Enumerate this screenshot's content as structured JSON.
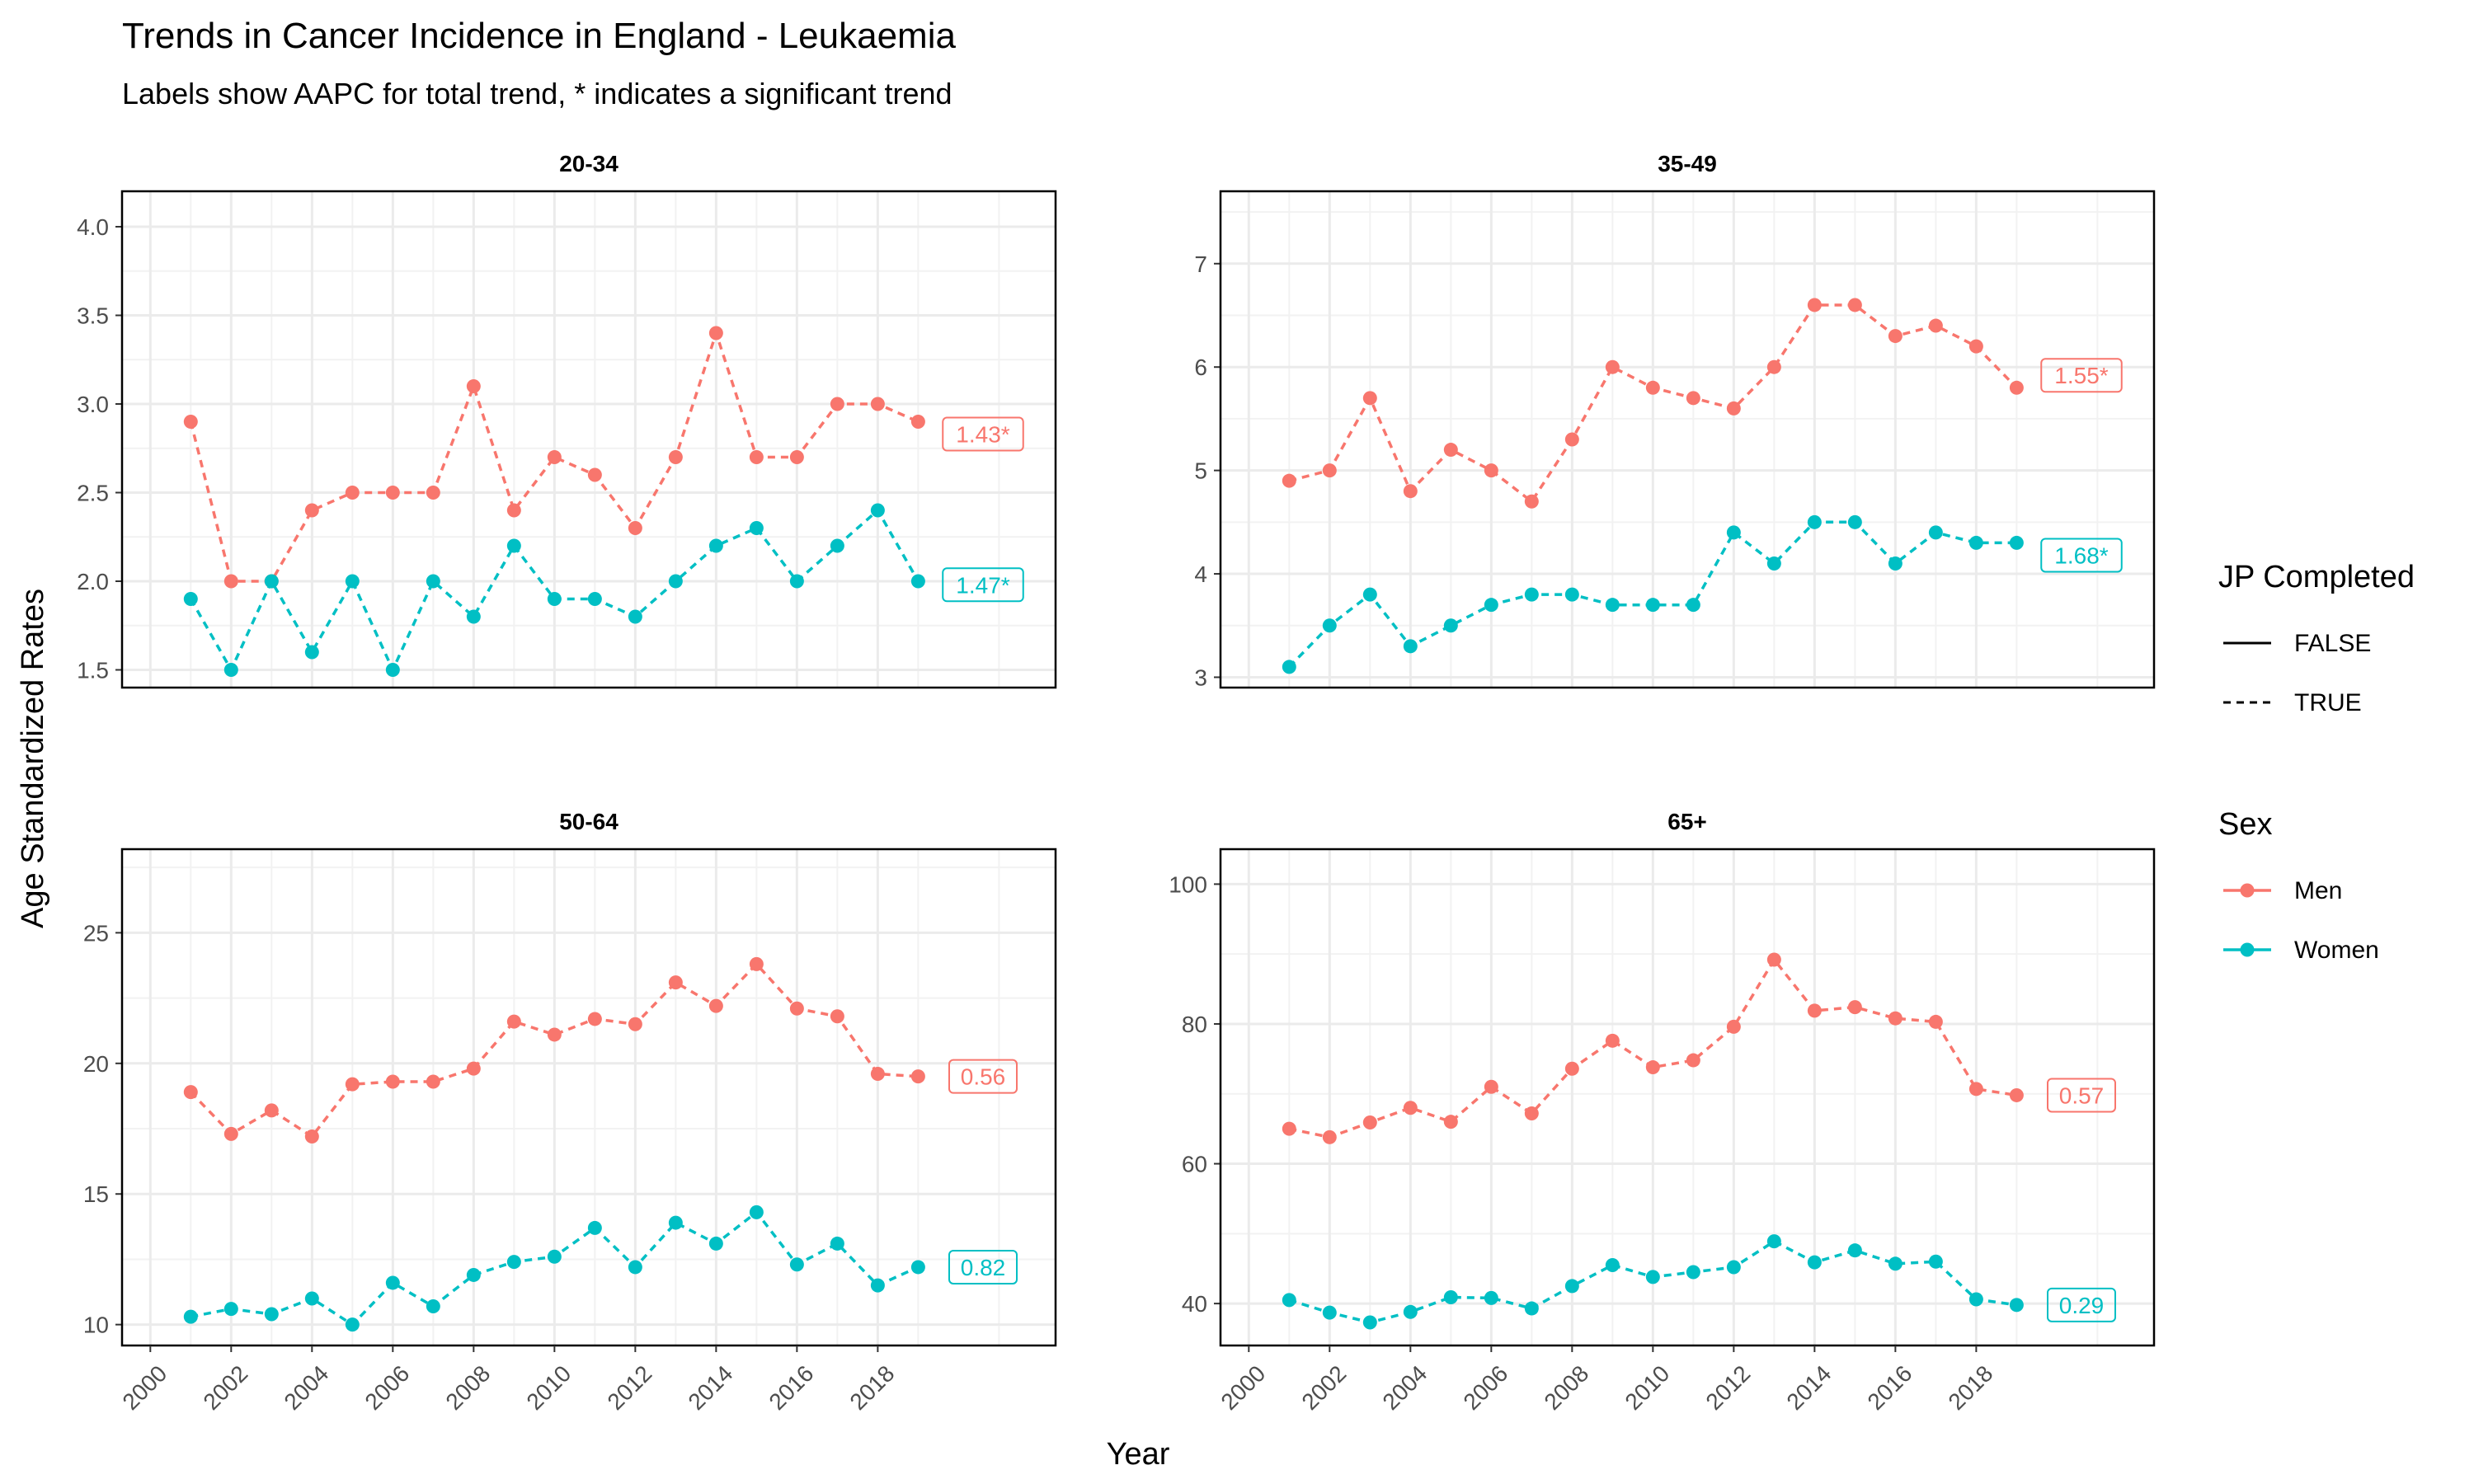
{
  "title": "Trends in Cancer Incidence in England - Leukaemia",
  "subtitle": "Labels show AAPC for total trend, * indicates a significant trend",
  "colors": {
    "men": "#F8766D",
    "women": "#00BFC4"
  },
  "chart_data": {
    "type": "line",
    "xlabel": "Year",
    "ylabel": "Age Standardized Rates",
    "x_ticks": [
      "2000",
      "2002",
      "2004",
      "2006",
      "2008",
      "2010",
      "2012",
      "2014",
      "2016",
      "2018"
    ],
    "xlim": [
      1999.3,
      2022.4
    ],
    "legend": {
      "position": "right",
      "linetype_title": "JP Completed",
      "linetype_items": [
        {
          "label": "FALSE",
          "style": "solid"
        },
        {
          "label": "TRUE",
          "style": "dashed"
        }
      ],
      "color_title": "Sex",
      "color_items": [
        {
          "label": "Men",
          "color": "#F8766D"
        },
        {
          "label": "Women",
          "color": "#00BFC4"
        }
      ]
    },
    "panels": [
      {
        "title": "20-34",
        "ylim": [
          1.4,
          4.2
        ],
        "y_ticks": [
          "1.5",
          "2.0",
          "2.5",
          "3.0",
          "3.5",
          "4.0"
        ],
        "series": [
          {
            "name": "Men",
            "x": [
              2001,
              2002,
              2003,
              2004,
              2005,
              2006,
              2007,
              2008,
              2009,
              2010,
              2011,
              2012,
              2013,
              2014,
              2015,
              2016,
              2017,
              2018,
              2019
            ],
            "values": [
              2.9,
              2.0,
              2.0,
              2.4,
              2.5,
              2.5,
              2.5,
              3.1,
              2.4,
              2.7,
              2.6,
              2.3,
              2.7,
              3.4,
              2.7,
              2.7,
              3.0,
              3.0,
              2.9
            ],
            "aapc": "1.43*",
            "aapc_y": 2.83
          },
          {
            "name": "Women",
            "x": [
              2001,
              2002,
              2003,
              2004,
              2005,
              2006,
              2007,
              2008,
              2009,
              2010,
              2011,
              2012,
              2013,
              2014,
              2015,
              2016,
              2017,
              2018,
              2019
            ],
            "values": [
              1.9,
              1.5,
              2.0,
              1.6,
              2.0,
              1.5,
              2.0,
              1.8,
              2.2,
              1.9,
              1.9,
              1.8,
              2.0,
              2.2,
              2.3,
              2.0,
              2.2,
              2.4,
              2.0
            ],
            "aapc": "1.47*",
            "aapc_y": 1.98
          }
        ]
      },
      {
        "title": "35-49",
        "ylim": [
          2.9,
          7.7
        ],
        "y_ticks": [
          "3",
          "4",
          "5",
          "6",
          "7"
        ],
        "series": [
          {
            "name": "Men",
            "x": [
              2001,
              2002,
              2003,
              2004,
              2005,
              2006,
              2007,
              2008,
              2009,
              2010,
              2011,
              2012,
              2013,
              2014,
              2015,
              2016,
              2017,
              2018,
              2019
            ],
            "values": [
              4.9,
              5.0,
              5.7,
              4.8,
              5.2,
              5.0,
              4.7,
              5.3,
              6.0,
              5.8,
              5.7,
              5.6,
              6.0,
              6.6,
              6.6,
              6.3,
              6.4,
              6.2,
              5.8
            ],
            "aapc": "1.55*",
            "aapc_y": 5.92
          },
          {
            "name": "Women",
            "x": [
              2001,
              2002,
              2003,
              2004,
              2005,
              2006,
              2007,
              2008,
              2009,
              2010,
              2011,
              2012,
              2013,
              2014,
              2015,
              2016,
              2017,
              2018,
              2019
            ],
            "values": [
              3.1,
              3.5,
              3.8,
              3.3,
              3.5,
              3.7,
              3.8,
              3.8,
              3.7,
              3.7,
              3.7,
              4.4,
              4.1,
              4.5,
              4.5,
              4.1,
              4.4,
              4.3,
              4.3
            ],
            "aapc": "1.68*",
            "aapc_y": 4.18
          }
        ]
      },
      {
        "title": "50-64",
        "ylim": [
          9.2,
          28.2
        ],
        "y_ticks": [
          "10",
          "15",
          "20",
          "25"
        ],
        "series": [
          {
            "name": "Men",
            "x": [
              2001,
              2002,
              2003,
              2004,
              2005,
              2006,
              2007,
              2008,
              2009,
              2010,
              2011,
              2012,
              2013,
              2014,
              2015,
              2016,
              2017,
              2018,
              2019
            ],
            "values": [
              18.9,
              17.3,
              18.2,
              17.2,
              19.2,
              19.3,
              19.3,
              19.8,
              21.6,
              21.1,
              21.7,
              21.5,
              23.1,
              22.2,
              23.8,
              22.1,
              21.8,
              19.6,
              19.5
            ],
            "aapc": "0.56",
            "aapc_y": 19.5
          },
          {
            "name": "Women",
            "x": [
              2001,
              2002,
              2003,
              2004,
              2005,
              2006,
              2007,
              2008,
              2009,
              2010,
              2011,
              2012,
              2013,
              2014,
              2015,
              2016,
              2017,
              2018,
              2019
            ],
            "values": [
              10.3,
              10.6,
              10.4,
              11.0,
              10.0,
              11.6,
              10.7,
              11.9,
              12.4,
              12.6,
              13.7,
              12.2,
              13.9,
              13.1,
              14.3,
              12.3,
              13.1,
              11.5,
              12.2
            ],
            "aapc": "0.82",
            "aapc_y": 12.2
          }
        ]
      },
      {
        "title": "65+",
        "ylim": [
          34,
          105
        ],
        "y_ticks": [
          "40",
          "60",
          "80",
          "100"
        ],
        "series": [
          {
            "name": "Men",
            "x": [
              2001,
              2002,
              2003,
              2004,
              2005,
              2006,
              2007,
              2008,
              2009,
              2010,
              2011,
              2012,
              2013,
              2014,
              2015,
              2016,
              2017,
              2018,
              2019
            ],
            "values": [
              65.0,
              63.8,
              65.9,
              68.0,
              66.0,
              71.0,
              67.2,
              73.6,
              77.6,
              73.8,
              74.8,
              79.6,
              89.2,
              81.9,
              82.4,
              80.8,
              80.3,
              70.7,
              69.8
            ],
            "aapc": "0.57",
            "aapc_y": 69.8
          },
          {
            "name": "Women",
            "x": [
              2001,
              2002,
              2003,
              2004,
              2005,
              2006,
              2007,
              2008,
              2009,
              2010,
              2011,
              2012,
              2013,
              2014,
              2015,
              2016,
              2017,
              2018,
              2019
            ],
            "values": [
              40.5,
              38.7,
              37.3,
              38.8,
              40.9,
              40.8,
              39.3,
              42.5,
              45.5,
              43.8,
              44.5,
              45.2,
              48.9,
              45.9,
              47.6,
              45.7,
              46.0,
              40.6,
              39.8
            ],
            "aapc": "0.29",
            "aapc_y": 39.8
          }
        ]
      }
    ]
  }
}
